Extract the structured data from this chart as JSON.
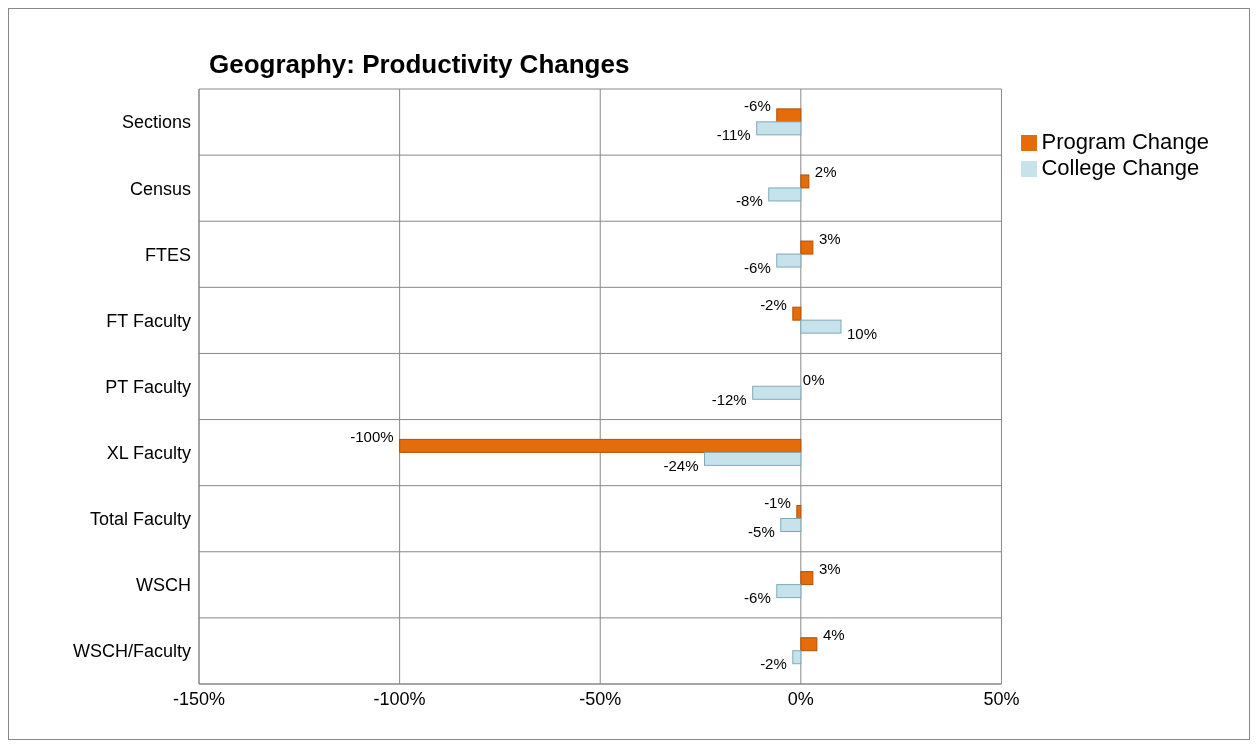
{
  "chart_data": {
    "type": "bar",
    "orientation": "horizontal",
    "title": "Geography: Productivity Changes",
    "categories": [
      "Sections",
      "Census",
      "FTES",
      "FT Faculty",
      "PT Faculty",
      "XL Faculty",
      "Total Faculty",
      "WSCH",
      "WSCH/Faculty"
    ],
    "series": [
      {
        "name": "Program Change",
        "color": "#e46c0a",
        "values": [
          -6,
          2,
          3,
          -2,
          0,
          -100,
          -1,
          3,
          4
        ],
        "value_labels": [
          "-6%",
          "2%",
          "3%",
          "-2%",
          "0%",
          "-100%",
          "-1%",
          "3%",
          "4%"
        ]
      },
      {
        "name": "College Change",
        "color": "#c6e3ec",
        "values": [
          -11,
          -8,
          -6,
          10,
          -12,
          -24,
          -5,
          -6,
          -2
        ],
        "value_labels": [
          "-11%",
          "-8%",
          "-6%",
          "10%",
          "-12%",
          "-24%",
          "-5%",
          "-6%",
          "-2%"
        ]
      }
    ],
    "xlim": [
      -150,
      50
    ],
    "xticks": [
      {
        "value": -150,
        "label": "-150%"
      },
      {
        "value": -100,
        "label": "-100%"
      },
      {
        "value": -50,
        "label": "-50%"
      },
      {
        "value": 0,
        "label": "0%"
      },
      {
        "value": 50,
        "label": "50%"
      }
    ],
    "grid": true,
    "legend": "right"
  }
}
